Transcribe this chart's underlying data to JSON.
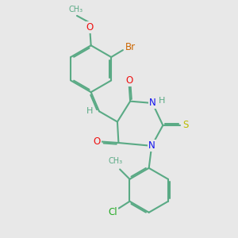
{
  "bg_color": "#e8e8e8",
  "bond_color": "#5aaa85",
  "bond_width": 1.5,
  "dbo": 0.06,
  "atom_colors": {
    "O": "#ee1111",
    "N": "#1111ee",
    "S": "#bbbb00",
    "Br": "#cc6600",
    "Cl": "#22aa22",
    "C": "#5aaa85",
    "H": "#5aaa85"
  },
  "fs": 8.5
}
